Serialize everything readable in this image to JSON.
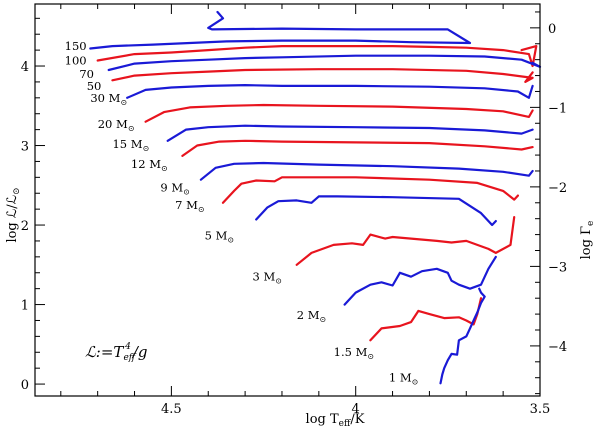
{
  "chart_data": {
    "type": "line",
    "xlabel": "log T",
    "xlabel_sub": "eff",
    "xlabel_suffix": "/K",
    "ylabel": "log ℒ/ℒ",
    "ylabel_sub": "⊙",
    "y2label": "log Γ",
    "y2label_sub": "e",
    "x_reversed": true,
    "xlim": [
      4.87,
      3.5
    ],
    "ylim": [
      -0.15,
      4.78
    ],
    "y2lim": [
      -4.63,
      0.3
    ],
    "xticks": [
      4.5,
      4.0,
      3.5
    ],
    "xtick_labels": [
      "4.5",
      "4",
      "3.5"
    ],
    "yticks": [
      0,
      1,
      2,
      3,
      4
    ],
    "ytick_labels": [
      "0",
      "1",
      "2",
      "3",
      "4"
    ],
    "y2ticks": [
      0,
      -1,
      -2,
      -3,
      -4
    ],
    "y2tick_labels": [
      "0",
      "−1",
      "−2",
      "−3",
      "−4"
    ],
    "annotation": {
      "lhs": "ℒ:=T",
      "sub": "eff",
      "sup": "4",
      "rhs": "/g",
      "x": 4.72,
      "y": 0.5
    },
    "colors": {
      "red": "#e8141e",
      "blue": "#1a1ad6"
    },
    "series": [
      {
        "name": "150",
        "label": "150",
        "color": "blue",
        "label_at": [
          4.73,
          4.2
        ],
        "points": [
          [
            4.72,
            4.22
          ],
          [
            4.66,
            4.25
          ],
          [
            4.55,
            4.27
          ],
          [
            4.45,
            4.29
          ],
          [
            4.35,
            4.31
          ],
          [
            4.2,
            4.32
          ],
          [
            4.0,
            4.32
          ],
          [
            3.85,
            4.3
          ],
          [
            3.69,
            4.29
          ],
          [
            3.75,
            4.46
          ],
          [
            4.0,
            4.46
          ],
          [
            4.2,
            4.47
          ],
          [
            4.39,
            4.46
          ],
          [
            4.4,
            4.48
          ],
          [
            4.36,
            4.6
          ],
          [
            4.375,
            4.68
          ]
        ]
      },
      {
        "name": "100",
        "label": "100",
        "color": "red",
        "label_at": [
          4.73,
          4.02
        ],
        "points": [
          [
            4.7,
            4.07
          ],
          [
            4.6,
            4.15
          ],
          [
            4.5,
            4.17
          ],
          [
            4.4,
            4.2
          ],
          [
            4.3,
            4.23
          ],
          [
            4.2,
            4.25
          ],
          [
            4.05,
            4.25
          ],
          [
            3.9,
            4.25
          ],
          [
            3.8,
            4.24
          ],
          [
            3.7,
            4.23
          ],
          [
            3.6,
            4.2
          ],
          [
            3.53,
            4.15
          ],
          [
            3.52,
            4.0
          ],
          [
            3.51,
            4.25
          ],
          [
            3.55,
            4.2
          ]
        ]
      },
      {
        "name": "70",
        "label": "70",
        "color": "blue",
        "label_at": [
          4.71,
          3.85
        ],
        "points": [
          [
            4.67,
            3.95
          ],
          [
            4.6,
            4.03
          ],
          [
            4.5,
            4.06
          ],
          [
            4.4,
            4.08
          ],
          [
            4.3,
            4.1
          ],
          [
            4.2,
            4.11
          ],
          [
            4.0,
            4.13
          ],
          [
            3.8,
            4.13
          ],
          [
            3.65,
            4.12
          ],
          [
            3.55,
            4.08
          ],
          [
            3.5,
            3.99
          ],
          [
            3.52,
            4.04
          ]
        ]
      },
      {
        "name": "50",
        "label": "50",
        "color": "red",
        "label_at": [
          4.69,
          3.7
        ],
        "points": [
          [
            4.66,
            3.82
          ],
          [
            4.6,
            3.88
          ],
          [
            4.5,
            3.91
          ],
          [
            4.4,
            3.93
          ],
          [
            4.3,
            3.95
          ],
          [
            4.1,
            3.96
          ],
          [
            3.9,
            3.96
          ],
          [
            3.7,
            3.94
          ],
          [
            3.6,
            3.9
          ],
          [
            3.52,
            3.85
          ],
          [
            3.54,
            3.8
          ],
          [
            3.52,
            3.92
          ]
        ]
      },
      {
        "name": "30",
        "label": "30 M",
        "color": "blue",
        "label_at": [
          4.62,
          3.55
        ],
        "points": [
          [
            4.62,
            3.6
          ],
          [
            4.57,
            3.7
          ],
          [
            4.5,
            3.73
          ],
          [
            4.4,
            3.75
          ],
          [
            4.3,
            3.76
          ],
          [
            4.2,
            3.75
          ],
          [
            4.0,
            3.75
          ],
          [
            3.8,
            3.74
          ],
          [
            3.65,
            3.72
          ],
          [
            3.56,
            3.68
          ],
          [
            3.53,
            3.6
          ],
          [
            3.52,
            3.75
          ]
        ]
      },
      {
        "name": "20",
        "label": "20 M",
        "color": "red",
        "label_at": [
          4.6,
          3.22
        ],
        "points": [
          [
            4.57,
            3.3
          ],
          [
            4.52,
            3.42
          ],
          [
            4.45,
            3.48
          ],
          [
            4.35,
            3.5
          ],
          [
            4.25,
            3.51
          ],
          [
            4.1,
            3.5
          ],
          [
            3.9,
            3.49
          ],
          [
            3.7,
            3.46
          ],
          [
            3.6,
            3.43
          ],
          [
            3.53,
            3.36
          ],
          [
            3.52,
            3.44
          ]
        ]
      },
      {
        "name": "15",
        "label": "15 M",
        "color": "blue",
        "label_at": [
          4.56,
          2.97
        ],
        "points": [
          [
            4.51,
            3.06
          ],
          [
            4.46,
            3.2
          ],
          [
            4.4,
            3.23
          ],
          [
            4.3,
            3.25
          ],
          [
            4.2,
            3.24
          ],
          [
            4.0,
            3.23
          ],
          [
            3.8,
            3.22
          ],
          [
            3.65,
            3.19
          ],
          [
            3.55,
            3.15
          ],
          [
            3.52,
            3.2
          ]
        ]
      },
      {
        "name": "12",
        "label": "12 M",
        "color": "red",
        "label_at": [
          4.51,
          2.72
        ],
        "points": [
          [
            4.47,
            2.87
          ],
          [
            4.43,
            3.0
          ],
          [
            4.37,
            3.05
          ],
          [
            4.3,
            3.06
          ],
          [
            4.2,
            3.05
          ],
          [
            4.0,
            3.04
          ],
          [
            3.8,
            3.03
          ],
          [
            3.65,
            2.99
          ],
          [
            3.55,
            2.95
          ],
          [
            3.52,
            2.98
          ]
        ]
      },
      {
        "name": "9",
        "label": "9 M",
        "color": "blue",
        "label_at": [
          4.45,
          2.42
        ],
        "points": [
          [
            4.42,
            2.57
          ],
          [
            4.38,
            2.72
          ],
          [
            4.33,
            2.77
          ],
          [
            4.25,
            2.78
          ],
          [
            4.1,
            2.76
          ],
          [
            3.9,
            2.74
          ],
          [
            3.72,
            2.71
          ],
          [
            3.6,
            2.67
          ],
          [
            3.53,
            2.62
          ],
          [
            3.52,
            2.68
          ]
        ]
      },
      {
        "name": "7",
        "label": "7 M",
        "color": "red",
        "label_at": [
          4.41,
          2.2
        ],
        "points": [
          [
            4.36,
            2.28
          ],
          [
            4.33,
            2.43
          ],
          [
            4.31,
            2.52
          ],
          [
            4.27,
            2.56
          ],
          [
            4.22,
            2.55
          ],
          [
            4.2,
            2.6
          ],
          [
            4.16,
            2.6
          ],
          [
            4.0,
            2.6
          ],
          [
            3.8,
            2.57
          ],
          [
            3.67,
            2.53
          ],
          [
            3.6,
            2.43
          ],
          [
            3.57,
            2.32
          ],
          [
            3.56,
            2.37
          ]
        ]
      },
      {
        "name": "5",
        "label": "5 M",
        "color": "blue",
        "label_at": [
          4.33,
          1.82
        ],
        "points": [
          [
            4.27,
            2.07
          ],
          [
            4.24,
            2.22
          ],
          [
            4.21,
            2.3
          ],
          [
            4.16,
            2.31
          ],
          [
            4.12,
            2.28
          ],
          [
            4.1,
            2.36
          ],
          [
            4.05,
            2.36
          ],
          [
            3.9,
            2.35
          ],
          [
            3.72,
            2.33
          ],
          [
            3.66,
            2.15
          ],
          [
            3.63,
            2.0
          ],
          [
            3.62,
            2.05
          ]
        ]
      },
      {
        "name": "3",
        "label": "3 M",
        "color": "red",
        "label_at": [
          4.2,
          1.3
        ],
        "points": [
          [
            4.16,
            1.5
          ],
          [
            4.12,
            1.65
          ],
          [
            4.06,
            1.75
          ],
          [
            4.01,
            1.77
          ],
          [
            3.98,
            1.75
          ],
          [
            3.96,
            1.88
          ],
          [
            3.92,
            1.83
          ],
          [
            3.9,
            1.85
          ],
          [
            3.78,
            1.8
          ],
          [
            3.74,
            1.78
          ],
          [
            3.7,
            1.8
          ],
          [
            3.67,
            1.75
          ],
          [
            3.64,
            1.7
          ],
          [
            3.62,
            1.65
          ],
          [
            3.58,
            1.75
          ],
          [
            3.57,
            2.1
          ]
        ]
      },
      {
        "name": "2",
        "label": "2 M",
        "color": "blue",
        "label_at": [
          4.08,
          0.82
        ],
        "points": [
          [
            4.03,
            1.0
          ],
          [
            4.0,
            1.15
          ],
          [
            3.96,
            1.25
          ],
          [
            3.93,
            1.28
          ],
          [
            3.9,
            1.24
          ],
          [
            3.88,
            1.4
          ],
          [
            3.85,
            1.35
          ],
          [
            3.82,
            1.42
          ],
          [
            3.78,
            1.45
          ],
          [
            3.75,
            1.4
          ],
          [
            3.74,
            1.3
          ],
          [
            3.72,
            1.25
          ],
          [
            3.69,
            1.2
          ],
          [
            3.66,
            1.25
          ],
          [
            3.64,
            1.45
          ],
          [
            3.62,
            1.6
          ]
        ]
      },
      {
        "name": "1.5",
        "label": "1.5 M",
        "color": "red",
        "label_at": [
          3.95,
          0.35
        ],
        "points": [
          [
            3.96,
            0.55
          ],
          [
            3.93,
            0.7
          ],
          [
            3.88,
            0.73
          ],
          [
            3.85,
            0.78
          ],
          [
            3.83,
            0.92
          ],
          [
            3.8,
            0.88
          ],
          [
            3.76,
            0.83
          ],
          [
            3.72,
            0.84
          ],
          [
            3.7,
            0.8
          ],
          [
            3.68,
            0.75
          ],
          [
            3.67,
            0.88
          ],
          [
            3.66,
            1.08
          ]
        ]
      },
      {
        "name": "1",
        "label": "1 M",
        "color": "blue",
        "label_at": [
          3.83,
          0.03
        ],
        "points": [
          [
            3.77,
            0.01
          ],
          [
            3.765,
            0.12
          ],
          [
            3.76,
            0.2
          ],
          [
            3.75,
            0.3
          ],
          [
            3.74,
            0.38
          ],
          [
            3.725,
            0.37
          ],
          [
            3.72,
            0.55
          ],
          [
            3.7,
            0.6
          ],
          [
            3.69,
            0.7
          ],
          [
            3.68,
            0.8
          ],
          [
            3.67,
            0.9
          ],
          [
            3.66,
            1.02
          ],
          [
            3.65,
            1.1
          ],
          [
            3.66,
            1.15
          ],
          [
            3.665,
            1.2
          ]
        ]
      }
    ]
  }
}
